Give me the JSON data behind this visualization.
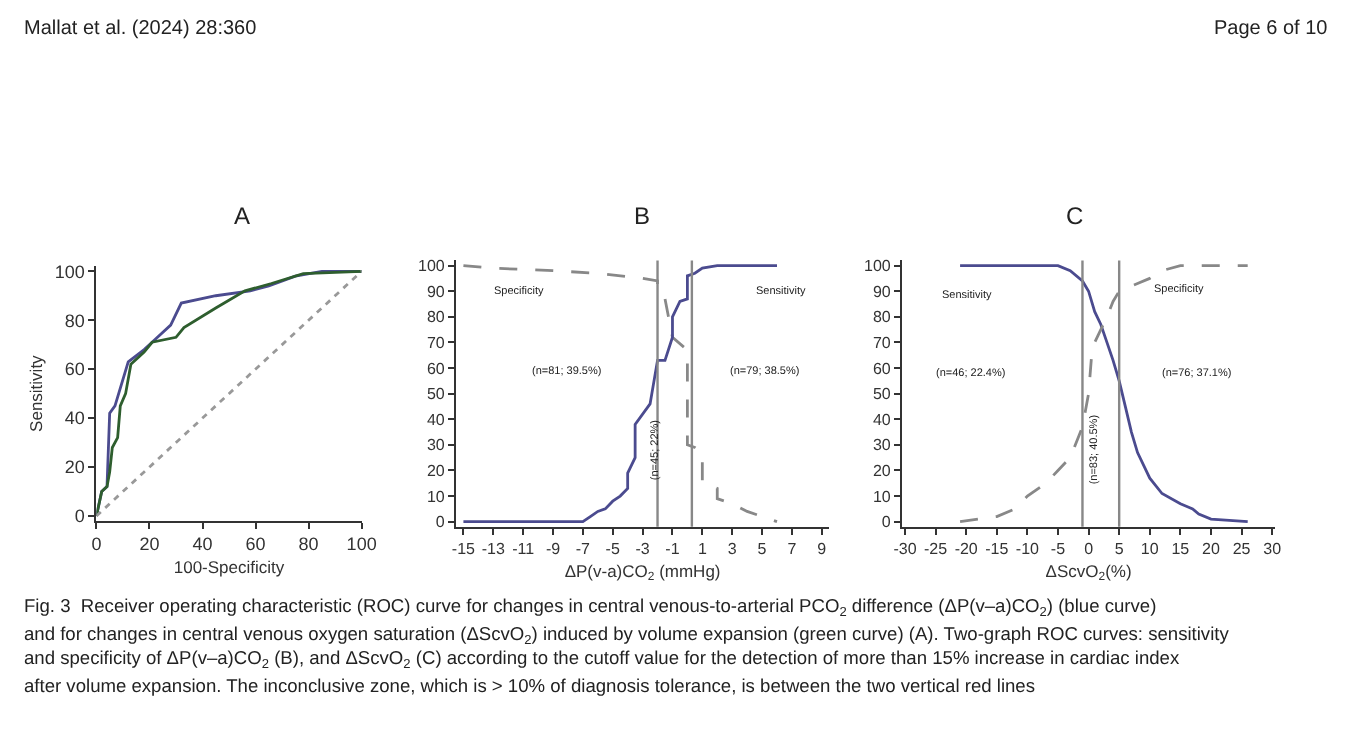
{
  "chart_data": [
    {
      "type": "line",
      "title": "A",
      "xlabel": "100-Specificity",
      "ylabel": "Sensitivity",
      "xlim": [
        0,
        100
      ],
      "ylim": [
        -2,
        102
      ],
      "xticks": [
        0,
        20,
        40,
        60,
        80,
        100
      ],
      "yticks": [
        0,
        20,
        40,
        60,
        80,
        100
      ],
      "grid": false,
      "legend": false,
      "marker": "none",
      "annotations": [
        "Mallat et al. (2024) 28:360",
        "Page 6 of 10"
      ],
      "series": [
        {
          "color": "#4b4b8f",
          "line_style": "solid",
          "x": [
            0,
            2,
            4,
            5,
            7,
            12,
            18,
            22,
            28,
            32,
            45,
            58,
            65,
            75,
            85,
            100
          ],
          "values": [
            0,
            10,
            12,
            42,
            45,
            63,
            68,
            72,
            78,
            87,
            90,
            92,
            94,
            98,
            100,
            100
          ]
        },
        {
          "color": "#2e5e2e",
          "line_style": "solid",
          "x": [
            0,
            1,
            2,
            4,
            5,
            6,
            8,
            9,
            11,
            13,
            18,
            21,
            30,
            33,
            45,
            56,
            66,
            78,
            100
          ],
          "values": [
            0,
            5,
            10,
            12,
            18,
            28,
            32,
            45,
            50,
            62,
            67,
            71,
            73,
            77,
            85,
            92,
            95,
            99,
            100
          ]
        },
        {
          "color": "#999999",
          "line_style": "dotted",
          "x": [
            0,
            100
          ],
          "values": [
            0,
            100
          ]
        }
      ]
    },
    {
      "type": "line",
      "title": "B",
      "xlabel": "ΔP(v-a)CO$_{2}$ (mmHg)",
      "xlim": [
        -15.5,
        9.5
      ],
      "ylim": [
        -2,
        102
      ],
      "xticks": [
        -15,
        -13,
        -11,
        -9,
        -7,
        -5,
        -3,
        -1,
        1,
        3,
        5,
        7,
        9
      ],
      "yticks": [
        0,
        10,
        20,
        30,
        40,
        50,
        60,
        70,
        80,
        90,
        100
      ],
      "grid": false,
      "legend": false,
      "marker": "none",
      "annotations": [
        "(n=81; 39.5%)",
        "(n=45; 22%)",
        "(n=79; 38.5%)"
      ],
      "ref_lines": [
        {
          "axis": "x",
          "value": -2,
          "color": "#888888"
        },
        {
          "axis": "x",
          "value": 0.3,
          "color": "#888888"
        }
      ],
      "series": [
        {
          "name": "Specificity",
          "color": "#888888",
          "line_style": "dashed",
          "x": [
            -15,
            -13,
            -9,
            -6,
            -3,
            -2,
            -2,
            -1.5,
            -1,
            0,
            0,
            0.5,
            1,
            1,
            2,
            2,
            3,
            4,
            6
          ],
          "values": [
            100,
            99,
            98,
            97,
            95,
            94,
            90,
            87,
            72,
            67,
            30,
            29,
            27,
            15,
            13,
            9,
            7,
            4,
            0
          ]
        },
        {
          "name": "Sensitivity",
          "color": "#4b4b8f",
          "line_style": "solid",
          "x": [
            -15,
            -7,
            -6.5,
            -6,
            -5.5,
            -5,
            -4.5,
            -4,
            -4,
            -3.5,
            -3.5,
            -2.5,
            -2,
            -1.5,
            -1,
            -1,
            -0.5,
            0,
            0,
            0.5,
            1,
            2,
            6
          ],
          "values": [
            0,
            0,
            2,
            4,
            5,
            8,
            10,
            13,
            19,
            25,
            38,
            46,
            63,
            63,
            72,
            80,
            86,
            87,
            96,
            97,
            99,
            100,
            100
          ]
        }
      ]
    },
    {
      "type": "line",
      "title": "C",
      "xlabel": "ΔScvO$_{2}$(%)",
      "xlim": [
        -30.5,
        30.5
      ],
      "ylim": [
        -2,
        102
      ],
      "xticks": [
        -30,
        -25,
        -20,
        -15,
        -10,
        -5,
        0,
        5,
        10,
        15,
        20,
        25,
        30
      ],
      "yticks": [
        0,
        10,
        20,
        30,
        40,
        50,
        60,
        70,
        80,
        90,
        100
      ],
      "grid": false,
      "legend": false,
      "marker": "none",
      "annotations": [
        "(n=46; 22.4%)",
        "(n=83; 40.5%)",
        "(n=76; 37.1%)",
        "Fig. 3  Receiver operating characteristic (ROC) curve for changes in central venous-to-arterial PCO$_{2}$ difference (ΔP(v–a)CO$_{2}$) (blue curve)",
        "and for changes in central venous oxygen saturation (ΔScvO$_{2}$) induced by volume expansion (green curve) (A). Two-graph ROC curves: sensitivity",
        "and specificity of ΔP(v–a)CO$_{2}$ (B), and ΔScvO$_{2}$ (C) according to the cutoff value for the detection of more than 15% increase in cardiac index",
        "after volume expansion. The inconclusive zone, which is > 10% of diagnosis tolerance, is between the two vertical red lines"
      ],
      "ref_lines": [
        {
          "axis": "x",
          "value": -1,
          "color": "#888888"
        },
        {
          "axis": "x",
          "value": 5,
          "color": "#888888"
        }
      ],
      "series": [
        {
          "name": "Sensitivity",
          "color": "#4b4b8f",
          "line_style": "solid",
          "x": [
            -21,
            -5,
            -3,
            -1,
            0,
            1,
            2,
            3,
            4,
            5,
            6,
            7,
            8,
            10,
            12,
            15,
            17,
            18,
            20,
            26
          ],
          "values": [
            100,
            100,
            98,
            94,
            90,
            82,
            77,
            70,
            63,
            55,
            45,
            35,
            27,
            17,
            11,
            7,
            5,
            3,
            1,
            0
          ]
        },
        {
          "name": "Specificity",
          "color": "#888888",
          "line_style": "dashed",
          "x": [
            -21,
            -15,
            -12,
            -10,
            -7,
            -5,
            -3,
            -1,
            0,
            0.5,
            1,
            2,
            3,
            4,
            5,
            7,
            8,
            10,
            12,
            15,
            26
          ],
          "values": [
            0,
            2,
            5,
            10,
            15,
            20,
            25,
            37,
            50,
            65,
            70,
            75,
            80,
            86,
            90,
            92,
            93,
            95,
            98,
            100,
            100
          ]
        }
      ]
    }
  ]
}
